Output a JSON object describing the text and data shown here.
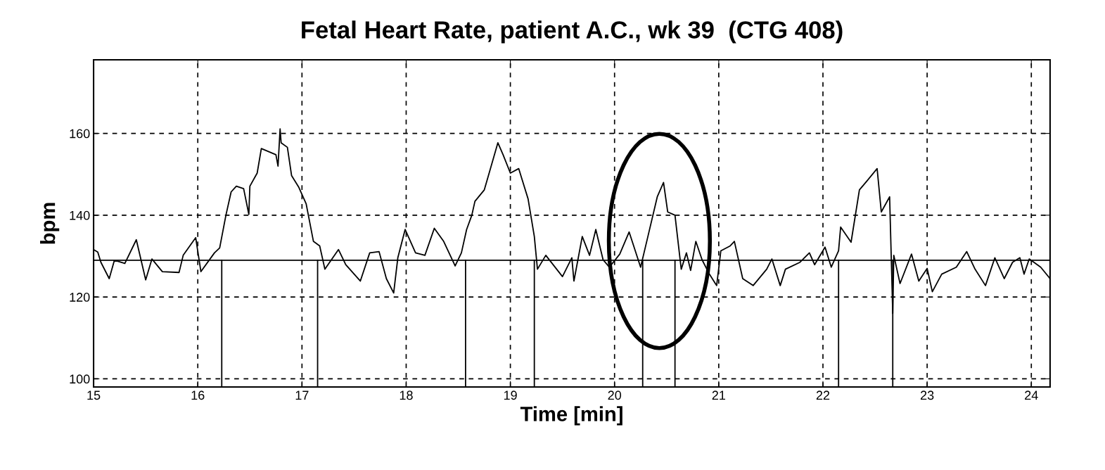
{
  "chart_data": {
    "type": "line",
    "title": "Fetal Heart Rate, patient A.C., wk 39  (CTG 408)",
    "xlabel": "Time [min]",
    "ylabel": "bpm",
    "xlim": [
      15,
      24.18
    ],
    "ylim": [
      98,
      178
    ],
    "xticks": [
      15,
      16,
      17,
      18,
      19,
      20,
      21,
      22,
      23,
      24
    ],
    "yticks": [
      100,
      120,
      140,
      160
    ],
    "grid": true,
    "line_style": "solid",
    "marker": "none",
    "series": [
      {
        "color": "#000000",
        "x": [
          15.0,
          15.04,
          15.07,
          15.15,
          15.2,
          15.3,
          15.41,
          15.5,
          15.56,
          15.66,
          15.82,
          15.86,
          15.98,
          16.03,
          16.16,
          16.21,
          16.27,
          16.32,
          16.37,
          16.44,
          16.49,
          16.5,
          16.57,
          16.61,
          16.75,
          16.77,
          16.79,
          16.8,
          16.86,
          16.9,
          16.97,
          17.04,
          17.11,
          17.17,
          17.22,
          17.35,
          17.42,
          17.56,
          17.65,
          17.74,
          17.81,
          17.88,
          17.92,
          17.99,
          18.09,
          18.18,
          18.27,
          18.36,
          18.47,
          18.53,
          18.58,
          18.63,
          18.66,
          18.75,
          18.88,
          18.93,
          19.0,
          19.08,
          19.17,
          19.23,
          19.26,
          19.34,
          19.5,
          19.59,
          19.61,
          19.69,
          19.76,
          19.82,
          19.89,
          19.95,
          20.05,
          20.14,
          20.25,
          20.32,
          20.41,
          20.47,
          20.51,
          20.58,
          20.64,
          20.69,
          20.73,
          20.78,
          20.84,
          20.91,
          20.98,
          21.02,
          21.11,
          21.15,
          21.23,
          21.33,
          21.46,
          21.51,
          21.59,
          21.64,
          21.78,
          21.87,
          21.92,
          22.02,
          22.08,
          22.15,
          22.17,
          22.27,
          22.35,
          22.42,
          22.52,
          22.56,
          22.64,
          22.67,
          22.68,
          22.74,
          22.85,
          22.92,
          23.0,
          23.05,
          23.14,
          23.28,
          23.38,
          23.46,
          23.56,
          23.65,
          23.74,
          23.82,
          23.89,
          23.93,
          23.98,
          24.09,
          24.18
        ],
        "values": [
          131.6,
          131,
          128.5,
          124.5,
          129,
          128.2,
          134,
          124.2,
          129.3,
          126.2,
          126,
          130.2,
          134.5,
          126.2,
          130.8,
          132,
          140,
          145.7,
          147.1,
          146.5,
          140.2,
          147.1,
          150.3,
          156.3,
          154.8,
          152,
          161.1,
          157.7,
          156.6,
          149.7,
          146.8,
          142.8,
          133.6,
          132.5,
          126.8,
          131.6,
          127.9,
          123.9,
          130.8,
          131.1,
          124.5,
          121,
          129.6,
          136.5,
          130.8,
          130.2,
          136.8,
          133.6,
          127.6,
          130.8,
          136.5,
          140,
          143.4,
          146.2,
          157.7,
          154.8,
          150.3,
          151.4,
          144,
          134.8,
          126.8,
          130.2,
          125,
          129.6,
          123.9,
          134.8,
          130.2,
          136.5,
          129.1,
          127.3,
          130.5,
          135.9,
          127.3,
          134.8,
          144.5,
          148,
          140.8,
          140,
          126.8,
          130.8,
          126.5,
          133.6,
          129.1,
          125.6,
          122.8,
          131.3,
          132.5,
          133.6,
          124.5,
          122.8,
          126.8,
          129.3,
          122.8,
          126.8,
          128.5,
          130.8,
          127.9,
          132.2,
          127.3,
          131.3,
          137.1,
          133.4,
          146.2,
          148.3,
          151.4,
          140.8,
          144.5,
          116,
          130.2,
          123.3,
          130.5,
          123.9,
          127,
          121.3,
          125.6,
          127.3,
          131.1,
          126.8,
          122.8,
          129.6,
          124.5,
          128.5,
          129.6,
          125.6,
          129.3,
          127.3,
          124.5
        ]
      }
    ],
    "ref_lines": [
      {
        "axis": "y",
        "value": 129,
        "color": "#000000",
        "line_style": "solid"
      },
      {
        "axis": "x",
        "value": 16.23,
        "color": "#000000",
        "line_style": "solid"
      },
      {
        "axis": "x",
        "value": 17.15,
        "color": "#000000",
        "line_style": "solid"
      },
      {
        "axis": "x",
        "value": 18.57,
        "color": "#000000",
        "line_style": "solid"
      },
      {
        "axis": "x",
        "value": 19.23,
        "color": "#000000",
        "line_style": "solid"
      },
      {
        "axis": "x",
        "value": 20.27,
        "color": "#000000",
        "line_style": "solid"
      },
      {
        "axis": "x",
        "value": 20.58,
        "color": "#000000",
        "line_style": "solid"
      },
      {
        "axis": "x",
        "value": 22.15,
        "color": "#000000",
        "line_style": "solid"
      },
      {
        "axis": "x",
        "value": 22.67,
        "color": "#000000",
        "line_style": "solid"
      }
    ]
  }
}
